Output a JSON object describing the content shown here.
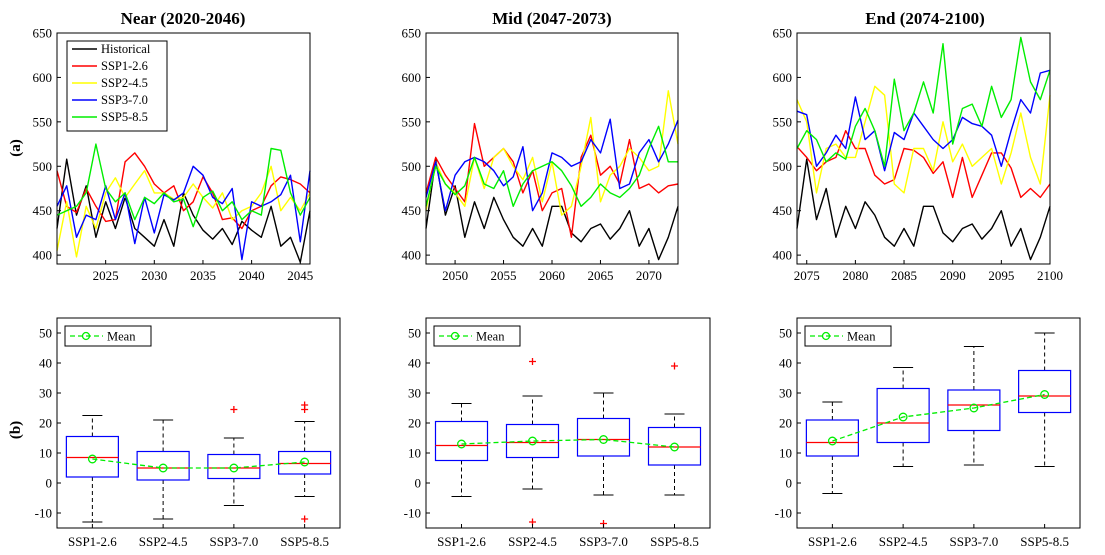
{
  "row_labels": [
    "(a)",
    "(b)"
  ],
  "chart_data": [
    {
      "type": "line",
      "panel": "a-near",
      "title": "Near (2020-2046)",
      "xlim": [
        2020,
        2046
      ],
      "ylim": [
        390,
        650
      ],
      "xticks": [
        2025,
        2030,
        2035,
        2040,
        2045
      ],
      "yticks": [
        400,
        450,
        500,
        550,
        600,
        650
      ],
      "legend": {
        "placement": "top-left",
        "entries": [
          "Historical",
          "SSP1-2.6",
          "SSP2-4.5",
          "SSP3-7.0",
          "SSP5-8.5"
        ]
      },
      "x": [
        2020,
        2021,
        2022,
        2023,
        2024,
        2025,
        2026,
        2027,
        2028,
        2029,
        2030,
        2031,
        2032,
        2033,
        2034,
        2035,
        2036,
        2037,
        2038,
        2039,
        2040,
        2041,
        2042,
        2043,
        2044,
        2045,
        2046
      ],
      "series": [
        {
          "name": "Historical",
          "color": "#000000",
          "values": [
            430,
            508,
            445,
            478,
            420,
            460,
            430,
            465,
            430,
            420,
            410,
            440,
            410,
            470,
            445,
            428,
            418,
            430,
            412,
            438,
            428,
            420,
            455,
            410,
            420,
            392,
            450
          ]
        },
        {
          "name": "SSP1-2.6",
          "color": "#ff0000",
          "values": [
            495,
            455,
            448,
            475,
            455,
            438,
            440,
            505,
            515,
            500,
            480,
            470,
            478,
            450,
            460,
            488,
            470,
            440,
            442,
            430,
            450,
            455,
            478,
            488,
            485,
            480,
            470
          ]
        },
        {
          "name": "SSP2-4.5",
          "color": "#ffff00",
          "values": [
            405,
            460,
            398,
            455,
            430,
            470,
            487,
            465,
            480,
            495,
            470,
            470,
            463,
            465,
            480,
            465,
            453,
            470,
            440,
            450,
            455,
            470,
            500,
            450,
            465,
            450,
            470
          ]
        },
        {
          "name": "SSP3-7.0",
          "color": "#0000ff",
          "values": [
            455,
            478,
            420,
            445,
            440,
            478,
            440,
            470,
            413,
            465,
            425,
            468,
            462,
            470,
            500,
            490,
            465,
            458,
            475,
            395,
            460,
            455,
            460,
            468,
            490,
            415,
            495
          ]
        },
        {
          "name": "SSP5-8.5",
          "color": "#00ee00",
          "values": [
            445,
            450,
            455,
            470,
            525,
            475,
            460,
            470,
            440,
            465,
            458,
            470,
            460,
            463,
            432,
            465,
            472,
            450,
            460,
            440,
            450,
            445,
            520,
            518,
            470,
            445,
            465
          ]
        }
      ]
    },
    {
      "type": "line",
      "panel": "a-mid",
      "title": "Mid (2047-2073)",
      "xlim": [
        2047,
        2073
      ],
      "ylim": [
        390,
        650
      ],
      "xticks": [
        2050,
        2055,
        2060,
        2065,
        2070
      ],
      "yticks": [
        400,
        450,
        500,
        550,
        600,
        650
      ],
      "x": [
        2047,
        2048,
        2049,
        2050,
        2051,
        2052,
        2053,
        2054,
        2055,
        2056,
        2057,
        2058,
        2059,
        2060,
        2061,
        2062,
        2063,
        2064,
        2065,
        2066,
        2067,
        2068,
        2069,
        2070,
        2071,
        2072,
        2073
      ],
      "series": [
        {
          "name": "Historical",
          "color": "#000000",
          "values": [
            430,
            508,
            445,
            478,
            420,
            460,
            430,
            465,
            440,
            420,
            410,
            430,
            410,
            455,
            455,
            425,
            415,
            430,
            435,
            418,
            430,
            450,
            410,
            430,
            395,
            420,
            455
          ]
        },
        {
          "name": "SSP1-2.6",
          "color": "#ff0000",
          "values": [
            470,
            510,
            490,
            475,
            460,
            548,
            500,
            510,
            520,
            505,
            470,
            495,
            450,
            470,
            475,
            420,
            510,
            535,
            490,
            500,
            480,
            530,
            475,
            480,
            470,
            478,
            480
          ]
        },
        {
          "name": "SSP2-4.5",
          "color": "#ffff00",
          "values": [
            450,
            505,
            480,
            470,
            455,
            510,
            475,
            510,
            520,
            500,
            485,
            510,
            460,
            505,
            445,
            455,
            500,
            555,
            460,
            490,
            500,
            520,
            510,
            495,
            500,
            585,
            525
          ]
        },
        {
          "name": "SSP3-7.0",
          "color": "#0000ff",
          "values": [
            465,
            505,
            450,
            490,
            505,
            510,
            505,
            495,
            478,
            488,
            522,
            450,
            470,
            515,
            510,
            500,
            505,
            530,
            515,
            553,
            475,
            480,
            515,
            530,
            505,
            525,
            552
          ]
        },
        {
          "name": "SSP5-8.5",
          "color": "#00ee00",
          "values": [
            455,
            500,
            480,
            468,
            478,
            510,
            480,
            475,
            495,
            455,
            480,
            495,
            500,
            505,
            495,
            478,
            455,
            465,
            480,
            470,
            465,
            475,
            490,
            520,
            545,
            505,
            505
          ]
        }
      ]
    },
    {
      "type": "line",
      "panel": "a-end",
      "title": "End (2074-2100)",
      "xlim": [
        2074,
        2100
      ],
      "ylim": [
        390,
        650
      ],
      "xticks": [
        2075,
        2080,
        2085,
        2090,
        2095,
        2100
      ],
      "yticks": [
        400,
        450,
        500,
        550,
        600,
        650
      ],
      "x": [
        2074,
        2075,
        2076,
        2077,
        2078,
        2079,
        2080,
        2081,
        2082,
        2083,
        2084,
        2085,
        2086,
        2087,
        2088,
        2089,
        2090,
        2091,
        2092,
        2093,
        2094,
        2095,
        2096,
        2097,
        2098,
        2099,
        2100
      ],
      "series": [
        {
          "name": "Historical",
          "color": "#000000",
          "values": [
            430,
            508,
            440,
            475,
            420,
            455,
            430,
            460,
            445,
            420,
            410,
            430,
            410,
            455,
            455,
            425,
            415,
            430,
            435,
            418,
            430,
            450,
            410,
            430,
            395,
            420,
            455
          ]
        },
        {
          "name": "SSP1-2.6",
          "color": "#ff0000",
          "values": [
            522,
            510,
            495,
            505,
            510,
            540,
            520,
            520,
            490,
            480,
            485,
            520,
            518,
            510,
            492,
            505,
            465,
            510,
            465,
            490,
            515,
            515,
            498,
            465,
            475,
            465,
            480
          ]
        },
        {
          "name": "SSP2-4.5",
          "color": "#ffff00",
          "values": [
            575,
            550,
            470,
            520,
            525,
            510,
            510,
            550,
            590,
            580,
            480,
            470,
            520,
            520,
            495,
            550,
            505,
            525,
            500,
            510,
            520,
            480,
            515,
            560,
            510,
            480,
            580
          ]
        },
        {
          "name": "SSP3-7.0",
          "color": "#0000ff",
          "values": [
            562,
            558,
            500,
            515,
            535,
            520,
            578,
            530,
            540,
            495,
            538,
            530,
            560,
            545,
            530,
            520,
            530,
            555,
            548,
            545,
            535,
            500,
            540,
            575,
            560,
            605,
            608
          ]
        },
        {
          "name": "SSP5-8.5",
          "color": "#00ee00",
          "values": [
            520,
            540,
            530,
            505,
            515,
            508,
            545,
            565,
            540,
            500,
            598,
            540,
            560,
            595,
            560,
            638,
            525,
            565,
            570,
            545,
            590,
            555,
            575,
            645,
            595,
            575,
            608
          ]
        }
      ]
    },
    {
      "type": "box",
      "panel": "b-near",
      "ylim": [
        -15,
        55
      ],
      "yticks": [
        -10,
        0,
        10,
        20,
        30,
        40,
        50
      ],
      "categories": [
        "SSP1-2.6",
        "SSP2-4.5",
        "SSP3-7.0",
        "SSP5-8.5"
      ],
      "legend": {
        "placement": "top-left",
        "entries": [
          "Mean"
        ]
      },
      "boxes": [
        {
          "whisker_low": -13,
          "q1": 2,
          "median": 8.5,
          "q3": 15.5,
          "whisker_high": 22.5,
          "mean": 8,
          "outliers": []
        },
        {
          "whisker_low": -12,
          "q1": 1,
          "median": 5,
          "q3": 10.5,
          "whisker_high": 21,
          "mean": 5,
          "outliers": []
        },
        {
          "whisker_low": -7.5,
          "q1": 1.5,
          "median": 5,
          "q3": 9.5,
          "whisker_high": 15,
          "mean": 5,
          "outliers": [
            24.5
          ]
        },
        {
          "whisker_low": -4.5,
          "q1": 3,
          "median": 6.5,
          "q3": 10.5,
          "whisker_high": 20.5,
          "mean": 7,
          "outliers": [
            24.5,
            26,
            -12
          ]
        }
      ]
    },
    {
      "type": "box",
      "panel": "b-mid",
      "ylim": [
        -15,
        55
      ],
      "yticks": [
        -10,
        0,
        10,
        20,
        30,
        40,
        50
      ],
      "categories": [
        "SSP1-2.6",
        "SSP2-4.5",
        "SSP3-7.0",
        "SSP5-8.5"
      ],
      "legend": {
        "placement": "top-left",
        "entries": [
          "Mean"
        ]
      },
      "boxes": [
        {
          "whisker_low": -4.5,
          "q1": 7.5,
          "median": 12.5,
          "q3": 20.5,
          "whisker_high": 26.5,
          "mean": 13,
          "outliers": []
        },
        {
          "whisker_low": -2,
          "q1": 8.5,
          "median": 13.5,
          "q3": 19.5,
          "whisker_high": 29,
          "mean": 14,
          "outliers": [
            40.5,
            -13
          ]
        },
        {
          "whisker_low": -4,
          "q1": 9,
          "median": 14.5,
          "q3": 21.5,
          "whisker_high": 30,
          "mean": 14.5,
          "outliers": [
            -13.5
          ]
        },
        {
          "whisker_low": -4,
          "q1": 6,
          "median": 12,
          "q3": 18.5,
          "whisker_high": 23,
          "mean": 12,
          "outliers": [
            39
          ]
        }
      ]
    },
    {
      "type": "box",
      "panel": "b-end",
      "ylim": [
        -15,
        55
      ],
      "yticks": [
        -10,
        0,
        10,
        20,
        30,
        40,
        50
      ],
      "categories": [
        "SSP1-2.6",
        "SSP2-4.5",
        "SSP3-7.0",
        "SSP5-8.5"
      ],
      "legend": {
        "placement": "top-left",
        "entries": [
          "Mean"
        ]
      },
      "boxes": [
        {
          "whisker_low": -3.5,
          "q1": 9,
          "median": 13.5,
          "q3": 21,
          "whisker_high": 27,
          "mean": 14,
          "outliers": []
        },
        {
          "whisker_low": 5.5,
          "q1": 13.5,
          "median": 20,
          "q3": 31.5,
          "whisker_high": 38.5,
          "mean": 22,
          "outliers": []
        },
        {
          "whisker_low": 6,
          "q1": 17.5,
          "median": 26,
          "q3": 31,
          "whisker_high": 45.5,
          "mean": 25,
          "outliers": []
        },
        {
          "whisker_low": 5.5,
          "q1": 23.5,
          "median": 29,
          "q3": 37.5,
          "whisker_high": 50,
          "mean": 29.5,
          "outliers": []
        }
      ]
    }
  ]
}
